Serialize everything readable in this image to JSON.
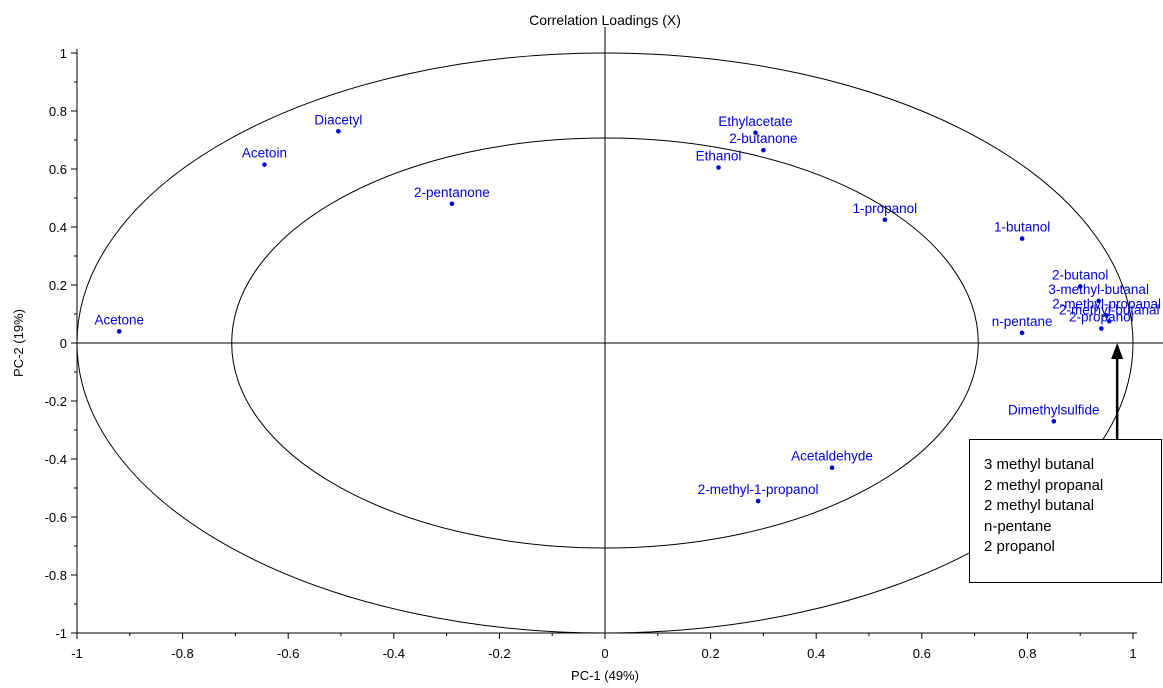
{
  "chart_data": {
    "type": "scatter",
    "title": "Correlation Loadings (X)",
    "xlabel": "PC-1 (49%)",
    "ylabel": "PC-2 (19%)",
    "xlim": [
      -1,
      1
    ],
    "ylim": [
      -1,
      1
    ],
    "xticks": [
      "-1",
      "-0.8",
      "-0.6",
      "-0.4",
      "-0.2",
      "0",
      "0.2",
      "0.4",
      "0.6",
      "0.8",
      "1"
    ],
    "yticks": [
      "1",
      "0.8",
      "0.6",
      "0.4",
      "0.2",
      "0",
      "-0.2",
      "-0.4",
      "-0.6",
      "-0.8",
      "-1"
    ],
    "circles": [
      1.0,
      0.707
    ],
    "grid": false,
    "point_color": "#0000dd",
    "points": [
      {
        "label": "Acetone",
        "x": -0.92,
        "y": 0.04
      },
      {
        "label": "Acetoin",
        "x": -0.645,
        "y": 0.615
      },
      {
        "label": "Diacetyl",
        "x": -0.505,
        "y": 0.73
      },
      {
        "label": "2-pentanone",
        "x": -0.29,
        "y": 0.48
      },
      {
        "label": "Ethylacetate",
        "x": 0.285,
        "y": 0.725
      },
      {
        "label": "2-butanone",
        "x": 0.3,
        "y": 0.665
      },
      {
        "label": "Ethanol",
        "x": 0.215,
        "y": 0.605
      },
      {
        "label": "1-propanol",
        "x": 0.53,
        "y": 0.425
      },
      {
        "label": "1-butanol",
        "x": 0.79,
        "y": 0.36
      },
      {
        "label": "2-butanol",
        "x": 0.9,
        "y": 0.195
      },
      {
        "label": "3-methyl-butanal",
        "x": 0.935,
        "y": 0.145
      },
      {
        "label": "2-methyl-propanal",
        "x": 0.95,
        "y": 0.095
      },
      {
        "label": "2-methyl-butanal",
        "x": 0.955,
        "y": 0.075
      },
      {
        "label": "n-pentane",
        "x": 0.79,
        "y": 0.035
      },
      {
        "label": "2-propanol",
        "x": 0.94,
        "y": 0.05
      },
      {
        "label": "Dimethylsulfide",
        "x": 0.85,
        "y": -0.27
      },
      {
        "label": "Acetaldehyde",
        "x": 0.43,
        "y": -0.43
      },
      {
        "label": "2-methyl-1-propanol",
        "x": 0.29,
        "y": -0.545
      }
    ],
    "annotation": {
      "lines": [
        "3 methyl butanal",
        "2 methyl propanal",
        "2 methyl butanal",
        "n-pentane",
        "2 propanol"
      ],
      "arrow_target": {
        "x": 0.97,
        "y": 0.0
      }
    }
  }
}
